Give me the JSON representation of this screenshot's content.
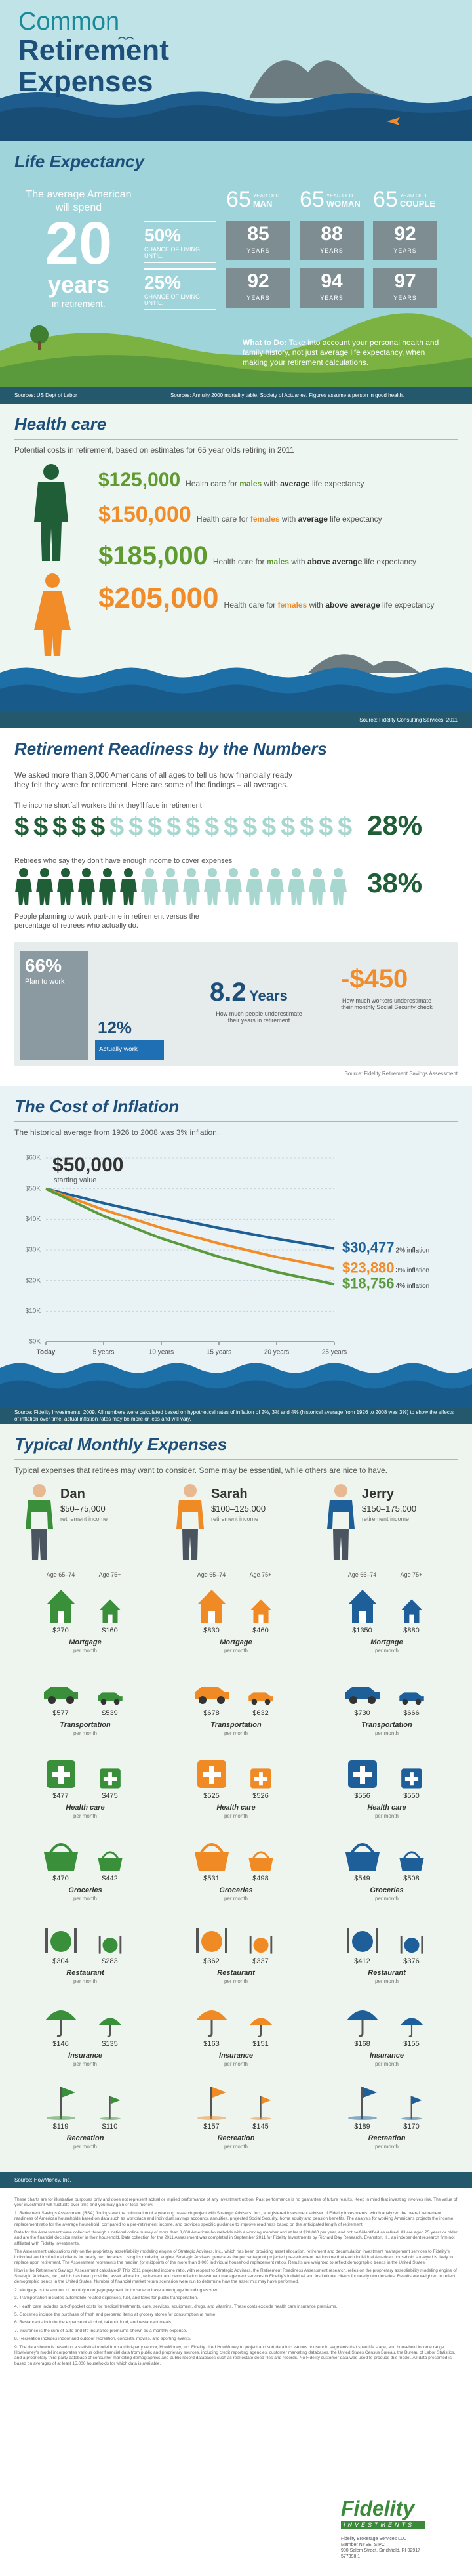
{
  "header": {
    "title_1": "Common",
    "title_2": "Retirement",
    "title_3": "Expenses"
  },
  "life_expectancy": {
    "title": "Life Expectancy",
    "intro_1": "The average American will spend",
    "years": "20",
    "intro_2": "years",
    "intro_3": "in retirement.",
    "chances": [
      {
        "value": "50%",
        "label": "CHANCE OF LIVING UNTIL:"
      },
      {
        "value": "25%",
        "label": "CHANCE OF LIVING UNTIL:"
      }
    ],
    "groups": [
      {
        "age": "65",
        "age_label": "YEAR OLD",
        "name": "MAN",
        "ages": [
          "85",
          "92"
        ]
      },
      {
        "age": "65",
        "age_label": "YEAR OLD",
        "name": "WOMAN",
        "ages": [
          "88",
          "94"
        ]
      },
      {
        "age": "65",
        "age_label": "YEAR OLD",
        "name": "COUPLE",
        "ages": [
          "92",
          "97"
        ]
      }
    ],
    "years_label": "YEARS",
    "what_to_do_label": "What to Do:",
    "what_to_do": "Take into account your personal health and family history, not just average life expectancy, when making your retirement calculations.",
    "source_left": "Sources: US Dept of Labor",
    "source_right": "Sources: Annuity 2000 mortality table, Society of Actuaries. Figures assume a person in good health."
  },
  "health_care": {
    "title": "Health care",
    "subtitle": "Potential costs in retirement, based on estimates for 65 year olds retiring in 2011",
    "rows": [
      {
        "amount": "$125,000",
        "parts": [
          "Health care for ",
          "males",
          " with ",
          "average",
          " life expectancy"
        ]
      },
      {
        "amount": "$150,000",
        "parts": [
          "Health care for ",
          "females",
          " with ",
          "average",
          " life expectancy"
        ]
      },
      {
        "amount": "$185,000",
        "parts": [
          "Health care for ",
          "males",
          " with ",
          "above average",
          " life expectancy"
        ]
      },
      {
        "amount": "$205,000",
        "parts": [
          "Health care for ",
          "females",
          " with ",
          "above average",
          " life expectancy"
        ]
      }
    ],
    "source": "Source: Fidelity Consulting Services, 2011"
  },
  "readiness": {
    "title": "Retirement Readiness by the Numbers",
    "intro": "We asked more than 3,000 Americans of all ages to tell us how financially ready they felt they were for retirement. Here are some of the findings – all averages.",
    "shortfall_label": "The income shortfall workers think they'll face in retirement",
    "shortfall": "28%",
    "retirees_label": "Retirees who say they don't have enough income to cover expenses",
    "retirees": "38%",
    "work_label": "People planning to work part-time in retirement versus the percentage of retirees who actually do.",
    "plan_to_work": {
      "value": 66,
      "value_label": "66%",
      "label": "Plan to work"
    },
    "actually_work": {
      "value": 12,
      "value_label": "12%",
      "label": "Actually work"
    },
    "years_value": "8.2",
    "years_unit": "Years",
    "years_caption": "How much people underestimate their years in retirement",
    "ss_value": "-$450",
    "ss_caption": "How much workers underestimate their monthly Social Security check",
    "source": "Source: Fidelity Retirement Savings Assessment"
  },
  "chart_data": {
    "type": "line",
    "title": "The Cost of Inflation",
    "subtitle": "The historical average from 1926 to 2008 was 3% inflation.",
    "start_label": "$50,000",
    "start_text": "starting value",
    "x": [
      0,
      5,
      10,
      15,
      20,
      25
    ],
    "xlim": [
      0,
      25
    ],
    "xticks": [
      {
        "value": 0,
        "label": "Today"
      },
      {
        "value": 5,
        "label": "5 years"
      },
      {
        "value": 10,
        "label": "10 years"
      },
      {
        "value": 15,
        "label": "15 years"
      },
      {
        "value": 20,
        "label": "20 years"
      },
      {
        "value": 25,
        "label": "25 years"
      }
    ],
    "ylim": [
      0,
      60000
    ],
    "yticks": [
      {
        "value": 0,
        "label": "$0K"
      },
      {
        "value": 10000,
        "label": "$10K"
      },
      {
        "value": 20000,
        "label": "$20K"
      },
      {
        "value": 30000,
        "label": "$30K"
      },
      {
        "value": 40000,
        "label": "$40K"
      },
      {
        "value": 50000,
        "label": "$50K"
      },
      {
        "value": 60000,
        "label": "$60K"
      }
    ],
    "grid": true,
    "series": [
      {
        "name": "2% inflation",
        "color": "#1e5f96",
        "values": [
          50000,
          45287,
          41017,
          37151,
          33649,
          30477
        ],
        "value_labels": [
          null,
          null,
          null,
          null,
          null,
          "$30,477"
        ]
      },
      {
        "name": "3% inflation",
        "color": "#f28c28",
        "values": [
          50000,
          43130,
          37205,
          32093,
          27684,
          23880
        ],
        "value_labels": [
          null,
          null,
          null,
          null,
          null,
          "$23,880"
        ]
      },
      {
        "name": "4% inflation",
        "color": "#5a9a3c",
        "values": [
          50000,
          41096,
          33778,
          27763,
          22819,
          18756
        ],
        "value_labels": [
          null,
          null,
          null,
          null,
          null,
          "$18,756"
        ]
      }
    ],
    "source": "Source: Fidelity Investments, 2009. All numbers were calculated based on hypothetical rates of inflation of 2%, 3% and 4% (historical average from 1926 to 2008 was 3%) to show the effects of inflation over time; actual inflation rates may be more or less and will vary."
  },
  "monthly": {
    "title": "Typical Monthly Expenses",
    "subtitle": "Typical expenses that retirees may want to consider. Some may be essential, while others are nice to have.",
    "people": [
      {
        "name": "Dan",
        "income": "$50–75,000",
        "income_label": "retirement income"
      },
      {
        "name": "Sarah",
        "income": "$100–125,000",
        "income_label": "retirement income"
      },
      {
        "name": "Jerry",
        "income": "$150–175,000",
        "income_label": "retirement income"
      }
    ],
    "age_groups": [
      "Age 65–74",
      "Age 75+"
    ],
    "per_month": "per month",
    "categories": [
      {
        "name": "Mortgage",
        "values": [
          [
            "$270",
            "$160"
          ],
          [
            "$830",
            "$460"
          ],
          [
            "$1350",
            "$880"
          ]
        ]
      },
      {
        "name": "Transportation",
        "values": [
          [
            "$577",
            "$539"
          ],
          [
            "$678",
            "$632"
          ],
          [
            "$730",
            "$666"
          ]
        ]
      },
      {
        "name": "Health care",
        "values": [
          [
            "$477",
            "$475"
          ],
          [
            "$525",
            "$526"
          ],
          [
            "$556",
            "$550"
          ]
        ]
      },
      {
        "name": "Groceries",
        "values": [
          [
            "$470",
            "$442"
          ],
          [
            "$531",
            "$498"
          ],
          [
            "$549",
            "$508"
          ]
        ]
      },
      {
        "name": "Restaurant",
        "values": [
          [
            "$304",
            "$283"
          ],
          [
            "$362",
            "$337"
          ],
          [
            "$412",
            "$376"
          ]
        ]
      },
      {
        "name": "Insurance",
        "values": [
          [
            "$146",
            "$135"
          ],
          [
            "$163",
            "$151"
          ],
          [
            "$168",
            "$155"
          ]
        ]
      },
      {
        "name": "Recreation",
        "values": [
          [
            "$119",
            "$110"
          ],
          [
            "$157",
            "$145"
          ],
          [
            "$189",
            "$170"
          ]
        ]
      }
    ],
    "source": "Source: HowMoney, Inc."
  },
  "notes": {
    "paragraphs": [
      "These charts are for illustrative purposes only and does not represent actual or implied performance of any investment option. Past performance is no guarantee of future results. Keep in mind that investing involves risk. The value of your investment will fluctuate over time and you may gain or lose money.",
      "1. Retirement Savings Assessment (RSA) findings are the culmination of a yearlong research project with Strategic Advisers, Inc., a registered investment adviser of Fidelity Investments, which analyzed the overall retirement readiness of American households based on data such as workplace and individual savings accounts, annuities, projected Social Security, home equity and pension benefits. The analysis for working Americans projects the income replacement ratio for the average household, compared to a pre-retirement income, and provides specific guidance to improve readiness based on the anticipated length of retirement.",
      "Data for the Assessment were collected through a national online survey of more than 3,000 American households with a working member and at least $20,000 per year, and not self-identified as retired. All are aged 25 years or older and are the financial decision maker in their household. Data collection for the 2011 Assessment was completed in September 2011 for Fidelity Investments by Richard Day Research, Evanston, Ill., an independent research firm not affiliated with Fidelity Investments.",
      "The Assessment calculations rely on the proprietary asset/liability modeling engine of Strategic Advisers, Inc., which has been providing asset allocation, retirement and decumulation investment management services to Fidelity's individual and institutional clients for nearly two decades. Using its modeling engine, Strategic Advisers generates the percentage of projected pre-retirement net income that each individual American household surveyed is likely to replace upon retirement. The Assessment represents the median (or midpoint) of the more than 3,000 individual household replacement ratios. Results are weighted to reflect demographic trends in the United States.",
      "How is the Retirement Savings Assessment calculated? This 2011 projected income ratio, with respect to Strategic Advisers, the Retirement Readiness Assessment research, relies on the proprietary asset/liability modeling engine of Strategic Advisers, Inc., which has been providing asset allocation, retirement and decumulation investment management services to Fidelity's individual and institutional clients for nearly two decades. Results are weighted to reflect demographic trends in the United States. Number of financial market return scenarios were run to determine how the asset mix may have performed.",
      "2. Mortgage is the amount of monthly mortgage payment for those who have a mortgage including escrow.",
      "3. Transportation includes automobile-related expenses, fuel, and fares for public transportation.",
      "4. Health care includes out-of-pocket costs for medical treatments, care, services, equipment, drugs, and vitamins. These costs exclude health care insurance premiums.",
      "5. Groceries include the purchase of fresh and prepared items at grocery stores for consumption at home.",
      "6. Restaurants include the expense of alcohol, takeout food, and restaurant meals.",
      "7. Insurance is the sum of auto and life insurance premiums shown as a monthly expense.",
      "8. Recreation includes indoor and outdoor recreation, concerts, movies, and sporting events.",
      "9. The data shown is based on a statistical model from a third-party vendor, HowMoney, Inc. Fidelity hired HowMoney to project and sort data into various household segments that span life stage, and household income range. HowMoney's model incorporates various other financial data from public and proprietary sources, including credit reporting agencies, customer marketing databases, the United States Census Bureau, the Bureau of Labor Statistics, and a proprietary third-party database of consumer marketing demographics and public record databases such as real estate deed files and records. No Fidelity customer data was used to produce this model. All data presented is based on averages of at least 15,000 households for which data is available."
    ],
    "logo": "Fidelity",
    "logo_sub": "INVESTMENTS",
    "address": [
      "Fidelity Brokerage Services LLC",
      "Member NYSE, SIPC",
      "900 Salem Street, Smithfield, RI 02917",
      "577398.1"
    ]
  }
}
